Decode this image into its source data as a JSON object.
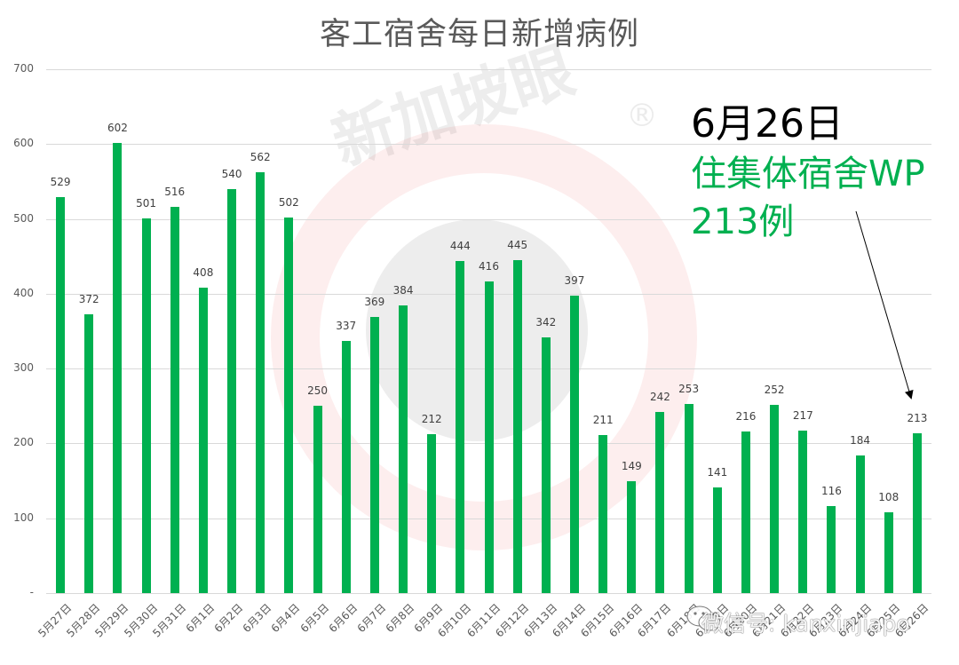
{
  "title": "客工宿舍每日新增病例",
  "annotation": {
    "date": "6月26日",
    "line1": "住集体宿舍WP",
    "line2": "213例",
    "arrow_from": [
      964,
      238
    ],
    "arrow_to": [
      1026,
      448
    ]
  },
  "watermark": {
    "brand": "新加坡眼",
    "registered": "®",
    "wechat": "微信号: kanxinjiapo"
  },
  "colors": {
    "bar": "#00B050",
    "title": "#595959",
    "grid": "#d9d9d9",
    "annotation_highlight": "#00B050"
  },
  "chart_data": {
    "type": "bar",
    "title": "客工宿舍每日新增病例",
    "xlabel": "",
    "ylabel": "",
    "ylim": [
      0,
      700
    ],
    "yticks": [
      0,
      100,
      200,
      300,
      400,
      500,
      600,
      700
    ],
    "ytick_labels": [
      "-",
      "100",
      "200",
      "300",
      "400",
      "500",
      "600",
      "700"
    ],
    "grid": true,
    "legend": "none",
    "categories": [
      "5月27日",
      "5月28日",
      "5月29日",
      "5月30日",
      "5月31日",
      "6月1日",
      "6月2日",
      "6月3日",
      "6月4日",
      "6月5日",
      "6月6日",
      "6月7日",
      "6月8日",
      "6月9日",
      "6月10日",
      "6月11日",
      "6月12日",
      "6月13日",
      "6月14日",
      "6月15日",
      "6月16日",
      "6月17日",
      "6月18日",
      "6月19日",
      "6月20日",
      "6月21日",
      "6月22日",
      "6月23日",
      "6月24日",
      "6月25日",
      "6月26日"
    ],
    "values": [
      529,
      372,
      602,
      501,
      516,
      408,
      540,
      562,
      502,
      250,
      337,
      369,
      384,
      212,
      444,
      416,
      445,
      342,
      397,
      211,
      149,
      242,
      253,
      141,
      216,
      252,
      217,
      116,
      184,
      108,
      213
    ],
    "annotations": [
      {
        "text": "6月26日 住集体宿舍WP 213例",
        "target": "6月26日"
      }
    ]
  }
}
